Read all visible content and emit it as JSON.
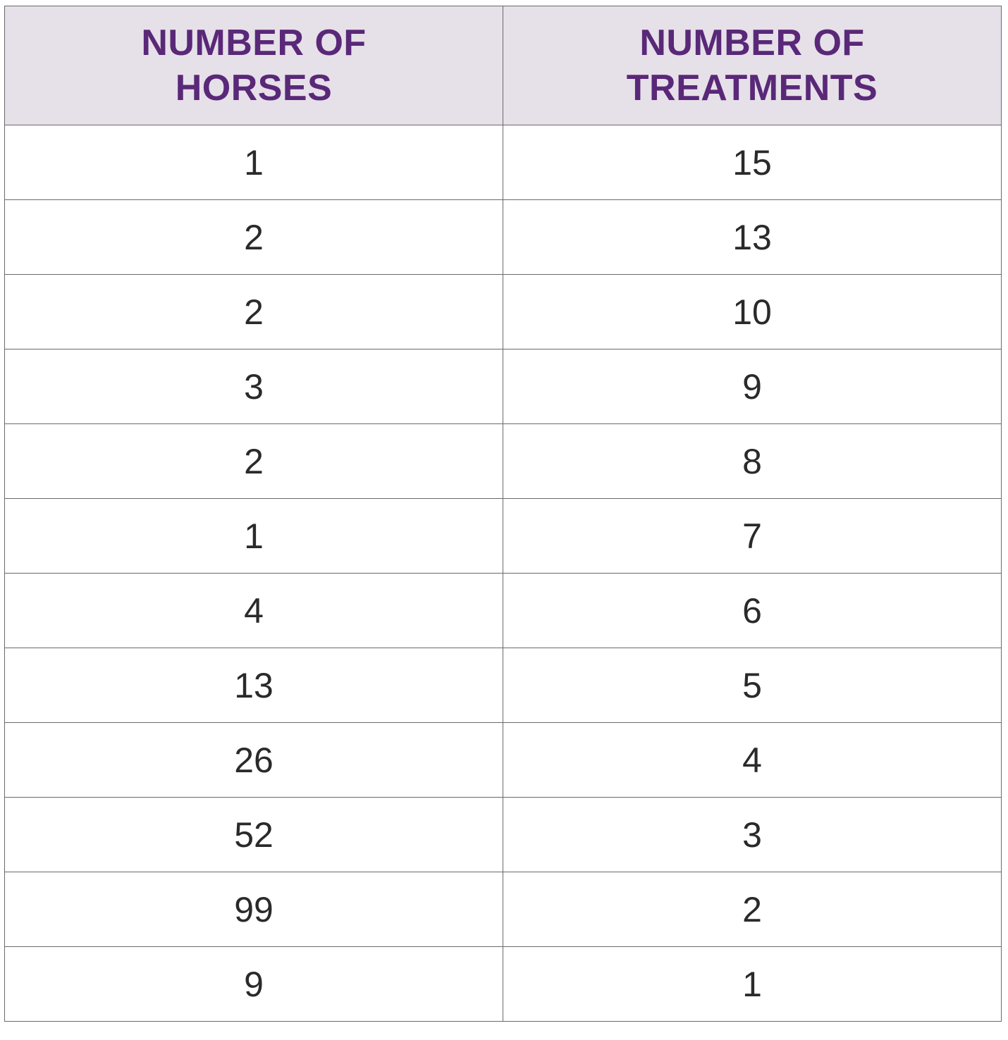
{
  "table": {
    "headers": [
      {
        "line1": "NUMBER OF",
        "line2": "HORSES"
      },
      {
        "line1": "NUMBER OF",
        "line2": "TREATMENTS"
      }
    ],
    "rows": [
      {
        "horses": "1",
        "treatments": "15"
      },
      {
        "horses": "2",
        "treatments": "13"
      },
      {
        "horses": "2",
        "treatments": "10"
      },
      {
        "horses": "3",
        "treatments": "9"
      },
      {
        "horses": "2",
        "treatments": "8"
      },
      {
        "horses": "1",
        "treatments": "7"
      },
      {
        "horses": "4",
        "treatments": "6"
      },
      {
        "horses": "13",
        "treatments": "5"
      },
      {
        "horses": "26",
        "treatments": "4"
      },
      {
        "horses": "52",
        "treatments": "3"
      },
      {
        "horses": "99",
        "treatments": "2"
      },
      {
        "horses": "9",
        "treatments": "1"
      }
    ]
  },
  "colors": {
    "header_background": "#e6e0e9",
    "header_text": "#5a2878",
    "cell_text": "#2a2a2a",
    "border": "#6a6a6a"
  }
}
